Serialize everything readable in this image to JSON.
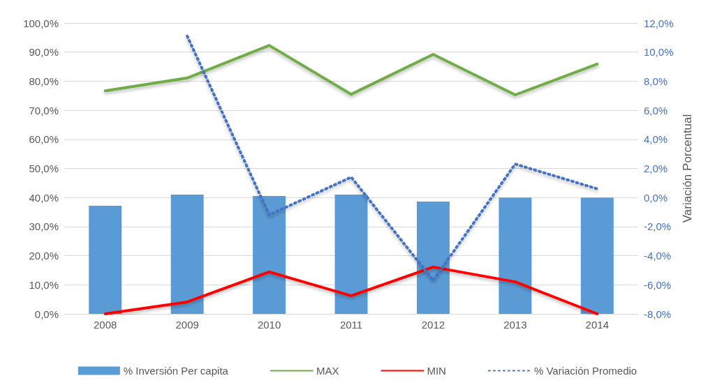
{
  "chart_data": {
    "type": "bar",
    "y2label": "Variación Porcentual",
    "categories": [
      "2008",
      "2009",
      "2010",
      "2011",
      "2012",
      "2013",
      "2014"
    ],
    "series": [
      {
        "name": "% Inversión Per capita",
        "color": "#5b9bd5",
        "values": [
          37.2,
          41.0,
          40.5,
          41.0,
          38.6,
          40.0,
          40.0
        ]
      },
      {
        "name": "MAX",
        "type": "line",
        "color": "#70ad47",
        "line_style": "solid",
        "values": [
          76.7,
          81.1,
          92.3,
          75.5,
          89.2,
          75.3,
          85.9
        ]
      },
      {
        "name": "MIN",
        "type": "line",
        "color": "#ff0000",
        "line_style": "solid",
        "values": [
          0.0,
          4.1,
          14.4,
          6.2,
          16.1,
          11.0,
          0.0
        ]
      },
      {
        "name": "% Variación Promedio",
        "type": "line",
        "color": "#4472c4",
        "line_style": "dotted",
        "axis": "y2",
        "values": [
          null,
          11.1,
          -1.2,
          1.4,
          -5.7,
          2.3,
          0.6
        ]
      }
    ],
    "ylim": [
      0,
      100
    ],
    "yticks": [
      {
        "value": 0,
        "label": "0,0%"
      },
      {
        "value": 10,
        "label": "10,0%"
      },
      {
        "value": 20,
        "label": "20,0%"
      },
      {
        "value": 30,
        "label": "30,0%"
      },
      {
        "value": 40,
        "label": "40,0%"
      },
      {
        "value": 50,
        "label": "50,0%"
      },
      {
        "value": 60,
        "label": "60,0%"
      },
      {
        "value": 70,
        "label": "70,0%"
      },
      {
        "value": 80,
        "label": "80,0%"
      },
      {
        "value": 90,
        "label": "90,0%"
      },
      {
        "value": 100,
        "label": "100,0%"
      }
    ],
    "y2lim": [
      -8,
      12
    ],
    "y2ticks": [
      {
        "value": -8,
        "label": "-8,0%"
      },
      {
        "value": -6,
        "label": "-6,0%"
      },
      {
        "value": -4,
        "label": "-4,0%"
      },
      {
        "value": -2,
        "label": "-2,0%"
      },
      {
        "value": 0,
        "label": "0,0%"
      },
      {
        "value": 2,
        "label": "2,0%"
      },
      {
        "value": 4,
        "label": "4,0%"
      },
      {
        "value": 6,
        "label": "6,0%"
      },
      {
        "value": 8,
        "label": "8,0%"
      },
      {
        "value": 10,
        "label": "10,0%"
      },
      {
        "value": 12,
        "label": "12,0%"
      }
    ],
    "grid": "y",
    "legend": "bottom",
    "marker": "none"
  }
}
